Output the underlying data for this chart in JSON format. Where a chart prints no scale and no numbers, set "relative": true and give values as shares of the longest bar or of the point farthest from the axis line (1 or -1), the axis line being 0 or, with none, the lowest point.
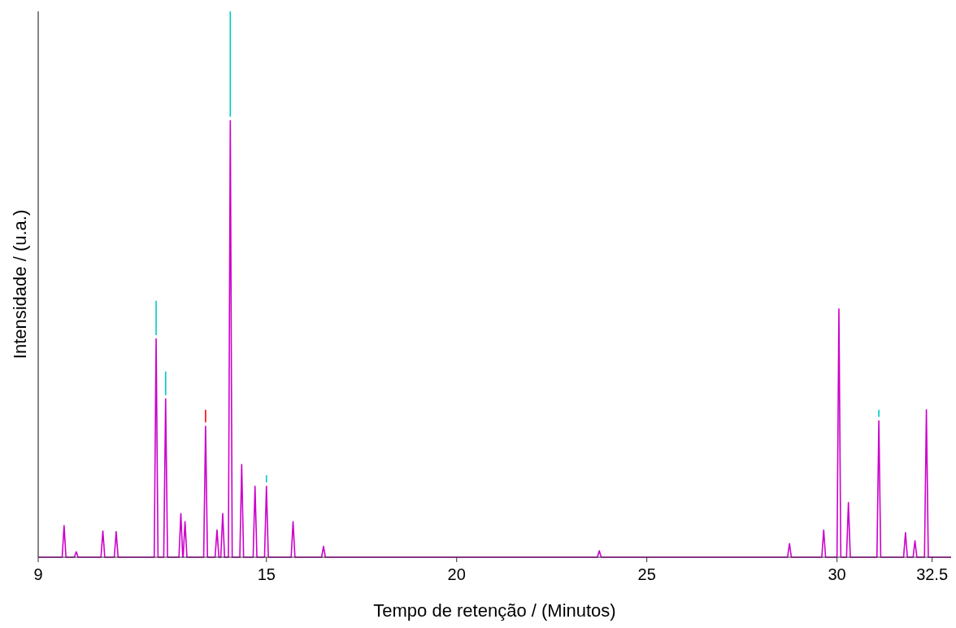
{
  "chart_data": {
    "type": "line",
    "relative": true,
    "xlabel": "Tempo de retenção / (Minutos)",
    "ylabel": "Intensidade / (u.a.)",
    "xlim": [
      9,
      33
    ],
    "xticks": [
      9,
      15,
      20,
      25,
      30,
      32.5
    ],
    "marker": "none",
    "line_style": "solid",
    "x": [
      9,
      9.63,
      9.68,
      9.73,
      9.95,
      10.0,
      10.05,
      10.65,
      10.7,
      10.75,
      11.0,
      11.05,
      11.1,
      12.05,
      12.1,
      12.15,
      12.3,
      12.35,
      12.4,
      12.7,
      12.75,
      12.8,
      12.81,
      12.86,
      12.91,
      13.35,
      13.4,
      13.45,
      13.65,
      13.7,
      13.75,
      13.8,
      13.85,
      13.9,
      14.0,
      14.05,
      14.1,
      14.3,
      14.35,
      14.4,
      14.65,
      14.7,
      14.75,
      14.95,
      15.0,
      15.05,
      15.65,
      15.7,
      15.75,
      16.45,
      16.5,
      16.55,
      23.7,
      23.75,
      23.8,
      28.7,
      28.75,
      28.8,
      29.6,
      29.65,
      29.7,
      30.0,
      30.05,
      30.1,
      30.25,
      30.3,
      30.35,
      31.05,
      31.1,
      31.15,
      31.75,
      31.8,
      31.85,
      32.0,
      32.05,
      32.1,
      32.3,
      32.35,
      32.4,
      33
    ],
    "series": [
      {
        "color": "#cc00cc",
        "values": [
          0,
          0,
          0.058,
          0,
          0,
          0.01,
          0,
          0,
          0.048,
          0,
          0,
          0.047,
          0,
          0,
          0.4,
          0,
          0,
          0.29,
          0,
          0,
          0.08,
          0,
          0,
          0.065,
          0,
          0,
          0.24,
          0,
          0,
          0.05,
          0,
          0,
          0.08,
          0,
          0,
          0.8,
          0,
          0,
          0.17,
          0,
          0,
          0.13,
          0,
          0,
          0.13,
          0,
          0,
          0.065,
          0,
          0,
          0.02,
          0,
          0,
          0.012,
          0,
          0,
          0.025,
          0,
          0,
          0.05,
          0,
          0,
          0.455,
          0,
          0,
          0.1,
          0,
          0,
          0.25,
          0,
          0,
          0.045,
          0,
          0,
          0.03,
          0,
          0,
          0.27,
          0,
          0
        ]
      },
      {
        "color": "#ff0000",
        "x": [
          13.4,
          13.4
        ],
        "values": [
          0.27,
          0.247
        ]
      },
      {
        "color": "#00c8c8",
        "x": [
          12.1,
          12.1,
          12.2,
          12.35,
          12.35,
          13.0,
          14.05,
          14.05,
          14.5,
          15.0,
          15.0,
          20,
          31.1,
          31.1
        ],
        "values": [
          0.47,
          0.407,
          null,
          0.34,
          0.297,
          null,
          1,
          0.807,
          null,
          0.15,
          0.137,
          null,
          0.27,
          0.257
        ]
      }
    ]
  }
}
